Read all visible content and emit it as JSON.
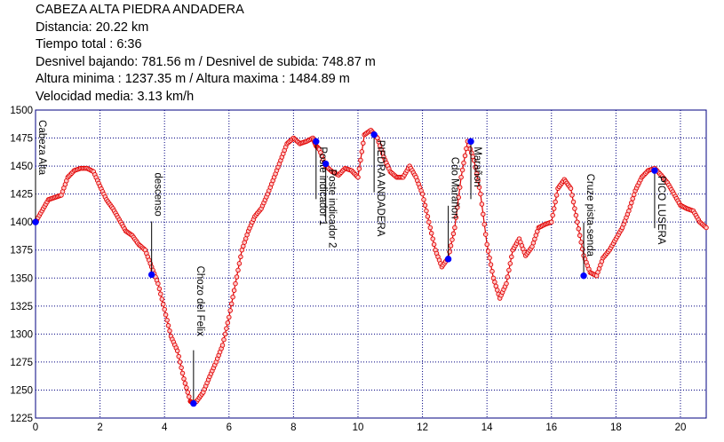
{
  "header": {
    "title": "CABEZA ALTA PIEDRA ANDADERA",
    "distance": "Distancia: 20.22 km",
    "total_time": "Tiempo total : 6:36",
    "elevation": "Desnivel bajando: 781.56 m / Desnivel de subida: 748.87 m",
    "altitude": "Altura minima : 1237.35 m / Altura maxima : 1484.89 m",
    "speed": "Velocidad media: 3.13 km/h"
  },
  "colors": {
    "track": "#e00000",
    "point_fill": "#ffc8c8",
    "waypoint": "#0000ff",
    "grid": "#000080"
  },
  "chart_data": {
    "type": "line",
    "xlabel": "",
    "ylabel": "",
    "xlim": [
      0,
      20.8
    ],
    "ylim": [
      1225,
      1500
    ],
    "x_ticks": [
      0,
      2,
      4,
      6,
      8,
      10,
      12,
      14,
      16,
      18,
      20
    ],
    "y_ticks": [
      1225,
      1250,
      1275,
      1300,
      1325,
      1350,
      1375,
      1400,
      1425,
      1450,
      1475,
      1500
    ],
    "grid": true,
    "series": [
      {
        "x": [
          0,
          0.2,
          0.4,
          0.6,
          0.8,
          1.0,
          1.2,
          1.4,
          1.6,
          1.8,
          2.0,
          2.2,
          2.4,
          2.6,
          2.8,
          3.0,
          3.2,
          3.4,
          3.6,
          3.8,
          4.0,
          4.2,
          4.4,
          4.6,
          4.8,
          4.9,
          5.0,
          5.2,
          5.4,
          5.6,
          5.8,
          6.0,
          6.2,
          6.4,
          6.6,
          6.8,
          7.0,
          7.2,
          7.4,
          7.6,
          7.8,
          8.0,
          8.2,
          8.4,
          8.6,
          8.7,
          8.8,
          9.0,
          9.2,
          9.4,
          9.6,
          9.8,
          10.0,
          10.2,
          10.4,
          10.6,
          10.8,
          11.0,
          11.2,
          11.4,
          11.6,
          11.8,
          12.0,
          12.2,
          12.4,
          12.6,
          12.8,
          13.0,
          13.2,
          13.4,
          13.6,
          13.8,
          14.0,
          14.2,
          14.4,
          14.6,
          14.8,
          15.0,
          15.2,
          15.4,
          15.6,
          15.8,
          16.0,
          16.2,
          16.4,
          16.6,
          16.8,
          17.0,
          17.2,
          17.4,
          17.6,
          17.8,
          18.0,
          18.2,
          18.4,
          18.6,
          18.8,
          19.0,
          19.2,
          19.4,
          19.6,
          19.8,
          20.0,
          20.2,
          20.4,
          20.6,
          20.8
        ],
        "y": [
          1400,
          1410,
          1420,
          1422,
          1424,
          1440,
          1446,
          1448,
          1448,
          1445,
          1432,
          1420,
          1412,
          1402,
          1392,
          1388,
          1380,
          1375,
          1360,
          1345,
          1322,
          1298,
          1285,
          1260,
          1240,
          1238,
          1240,
          1248,
          1262,
          1275,
          1290,
          1315,
          1345,
          1375,
          1392,
          1405,
          1412,
          1425,
          1440,
          1455,
          1470,
          1475,
          1470,
          1472,
          1475,
          1468,
          1465,
          1450,
          1445,
          1442,
          1448,
          1446,
          1440,
          1478,
          1482,
          1475,
          1458,
          1445,
          1440,
          1440,
          1450,
          1440,
          1425,
          1400,
          1375,
          1360,
          1368,
          1395,
          1440,
          1472,
          1455,
          1425,
          1380,
          1350,
          1332,
          1345,
          1375,
          1385,
          1370,
          1378,
          1395,
          1398,
          1400,
          1430,
          1438,
          1430,
          1400,
          1370,
          1355,
          1352,
          1368,
          1375,
          1385,
          1395,
          1410,
          1428,
          1440,
          1446,
          1448,
          1442,
          1435,
          1425,
          1415,
          1412,
          1410,
          1400,
          1395
        ]
      }
    ],
    "waypoints": [
      {
        "name": "Cabeza Alta",
        "x": 0.0,
        "y": 1400
      },
      {
        "name": "descenso",
        "x": 3.6,
        "y": 1353
      },
      {
        "name": "Chozo del Felix",
        "x": 4.9,
        "y": 1238
      },
      {
        "name": "Poste indicador 1",
        "x": 8.7,
        "y": 1472
      },
      {
        "name": "Poste indicador 2",
        "x": 9.0,
        "y": 1452
      },
      {
        "name": "PIEDRA ANDADERA",
        "x": 10.5,
        "y": 1478
      },
      {
        "name": "Cdo Marañon",
        "x": 12.8,
        "y": 1367
      },
      {
        "name": "Marañon",
        "x": 13.5,
        "y": 1472
      },
      {
        "name": "Cruze pista-senda",
        "x": 17.0,
        "y": 1352
      },
      {
        "name": "PICO LUSERA",
        "x": 19.2,
        "y": 1446
      }
    ]
  }
}
